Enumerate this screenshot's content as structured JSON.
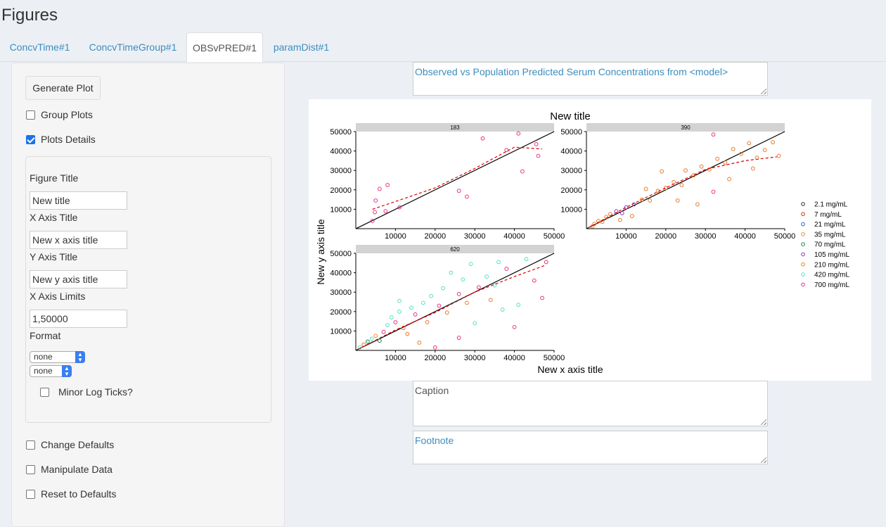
{
  "page": {
    "title": "Figures"
  },
  "tabs": [
    {
      "label": "ConcvTime#1",
      "active": false
    },
    {
      "label": "ConcvTimeGroup#1",
      "active": false
    },
    {
      "label": "OBSvPRED#1",
      "active": true
    },
    {
      "label": "paramDist#1",
      "active": false
    }
  ],
  "sidebar": {
    "generate_label": "Generate Plot",
    "group_plots": {
      "label": "Group Plots",
      "checked": false
    },
    "plot_details": {
      "label": "Plots Details",
      "checked": true
    },
    "figure_title": {
      "label": "Figure Title",
      "value": "New title"
    },
    "x_axis_title": {
      "label": "X Axis Title",
      "value": "New x axis title"
    },
    "y_axis_title": {
      "label": "Y Axis Title",
      "value": "New y axis title"
    },
    "x_axis_limits": {
      "label": "X Axis Limits",
      "value": "1,50000"
    },
    "format": {
      "label": "Format",
      "select1": "none",
      "select2": "none"
    },
    "minor_log_ticks": {
      "label": "Minor Log Ticks?",
      "checked": false
    },
    "change_defaults": {
      "label": "Change Defaults",
      "checked": false
    },
    "manipulate_data": {
      "label": "Manipulate Data",
      "checked": false
    },
    "reset_defaults": {
      "label": "Reset to Defaults",
      "checked": false
    }
  },
  "main": {
    "title_text": "Observed vs Population Predicted Serum Concentrations from <model>",
    "caption_placeholder": "Caption",
    "footnote_text": "Footnote"
  },
  "chart_data": {
    "type": "scatter",
    "title": "New title",
    "xlabel": "New x axis title",
    "ylabel": "New y axis title",
    "xlim": [
      1,
      50000
    ],
    "ylim": [
      1,
      50000
    ],
    "x_ticks": [
      10000,
      20000,
      30000,
      40000,
      50000
    ],
    "y_ticks": [
      10000,
      20000,
      30000,
      40000,
      50000
    ],
    "facets": [
      "183",
      "390",
      "620"
    ],
    "legend_position": "right",
    "series": [
      {
        "name": "2.1 mg/mL",
        "color": "#333333"
      },
      {
        "name": "7 mg/mL",
        "color": "#cc3311"
      },
      {
        "name": "21 mg/mL",
        "color": "#2266bb"
      },
      {
        "name": "35 mg/mL",
        "color": "#e88a33"
      },
      {
        "name": "70 mg/mL",
        "color": "#11884e"
      },
      {
        "name": "105 mg/mL",
        "color": "#9933cc"
      },
      {
        "name": "210 mg/mL",
        "color": "#ee7722"
      },
      {
        "name": "420 mg/mL",
        "color": "#55e0c0"
      },
      {
        "name": "700 mg/mL",
        "color": "#e8308a"
      }
    ],
    "panels": [
      {
        "facet": "183",
        "identity_line": true,
        "points": [
          {
            "x": 4200,
            "y": 4000,
            "s": 8
          },
          {
            "x": 4800,
            "y": 8500,
            "s": 8
          },
          {
            "x": 5000,
            "y": 14500,
            "s": 8
          },
          {
            "x": 6000,
            "y": 20500,
            "s": 8
          },
          {
            "x": 8000,
            "y": 22500,
            "s": 8
          },
          {
            "x": 7500,
            "y": 9000,
            "s": 8
          },
          {
            "x": 11000,
            "y": 11000,
            "s": 8
          },
          {
            "x": 26000,
            "y": 19500,
            "s": 8
          },
          {
            "x": 28000,
            "y": 16500,
            "s": 8
          },
          {
            "x": 32000,
            "y": 46500,
            "s": 8
          },
          {
            "x": 38000,
            "y": 40500,
            "s": 8
          },
          {
            "x": 41000,
            "y": 49000,
            "s": 8
          },
          {
            "x": 42000,
            "y": 29500,
            "s": 8
          },
          {
            "x": 45500,
            "y": 43500,
            "s": 8
          },
          {
            "x": 46000,
            "y": 37500,
            "s": 8
          }
        ],
        "smooth": [
          [
            4200,
            10000
          ],
          [
            10000,
            14000
          ],
          [
            20000,
            21000
          ],
          [
            30000,
            31000
          ],
          [
            40000,
            42000
          ],
          [
            47000,
            41000
          ]
        ]
      },
      {
        "facet": "390",
        "identity_line": true,
        "points": [
          {
            "x": 1500,
            "y": 1200,
            "s": 3
          },
          {
            "x": 2000,
            "y": 2500,
            "s": 3
          },
          {
            "x": 3000,
            "y": 4000,
            "s": 6
          },
          {
            "x": 4000,
            "y": 3500,
            "s": 6
          },
          {
            "x": 5000,
            "y": 6000,
            "s": 6
          },
          {
            "x": 6000,
            "y": 7500,
            "s": 6
          },
          {
            "x": 7500,
            "y": 9000,
            "s": 5
          },
          {
            "x": 9000,
            "y": 8000,
            "s": 5
          },
          {
            "x": 10000,
            "y": 11000,
            "s": 5
          },
          {
            "x": 12000,
            "y": 12500,
            "s": 5
          },
          {
            "x": 14000,
            "y": 15000,
            "s": 6
          },
          {
            "x": 16000,
            "y": 14500,
            "s": 6
          },
          {
            "x": 18000,
            "y": 19500,
            "s": 6
          },
          {
            "x": 20000,
            "y": 21000,
            "s": 6
          },
          {
            "x": 22000,
            "y": 24000,
            "s": 6
          },
          {
            "x": 24000,
            "y": 22500,
            "s": 6
          },
          {
            "x": 25000,
            "y": 30000,
            "s": 6
          },
          {
            "x": 27000,
            "y": 27500,
            "s": 6
          },
          {
            "x": 29000,
            "y": 32000,
            "s": 6
          },
          {
            "x": 31000,
            "y": 30500,
            "s": 6
          },
          {
            "x": 33000,
            "y": 36000,
            "s": 6
          },
          {
            "x": 35000,
            "y": 34000,
            "s": 6
          },
          {
            "x": 37000,
            "y": 41000,
            "s": 6
          },
          {
            "x": 39000,
            "y": 38500,
            "s": 6
          },
          {
            "x": 41000,
            "y": 44000,
            "s": 6
          },
          {
            "x": 43000,
            "y": 36500,
            "s": 6
          },
          {
            "x": 45000,
            "y": 40500,
            "s": 6
          },
          {
            "x": 47000,
            "y": 44500,
            "s": 6
          },
          {
            "x": 48500,
            "y": 37500,
            "s": 6
          },
          {
            "x": 19000,
            "y": 29500,
            "s": 6
          },
          {
            "x": 23000,
            "y": 14500,
            "s": 6
          },
          {
            "x": 32000,
            "y": 19000,
            "s": 8
          },
          {
            "x": 32000,
            "y": 48500,
            "s": 8
          },
          {
            "x": 28000,
            "y": 12500,
            "s": 6
          },
          {
            "x": 15000,
            "y": 20500,
            "s": 6
          },
          {
            "x": 36000,
            "y": 25500,
            "s": 6
          },
          {
            "x": 8500,
            "y": 4500,
            "s": 6
          },
          {
            "x": 11500,
            "y": 6500,
            "s": 6
          },
          {
            "x": 42000,
            "y": 31000,
            "s": 6
          }
        ],
        "smooth": [
          [
            500,
            500
          ],
          [
            10000,
            11000
          ],
          [
            20000,
            21000
          ],
          [
            30000,
            30500
          ],
          [
            40000,
            35000
          ],
          [
            48000,
            37000
          ]
        ]
      },
      {
        "facet": "620",
        "identity_line": true,
        "points": [
          {
            "x": 1000,
            "y": 1500,
            "s": 7
          },
          {
            "x": 2000,
            "y": 3000,
            "s": 6
          },
          {
            "x": 3000,
            "y": 4500,
            "s": 4
          },
          {
            "x": 4000,
            "y": 6000,
            "s": 7
          },
          {
            "x": 5000,
            "y": 7500,
            "s": 3
          },
          {
            "x": 6000,
            "y": 5000,
            "s": 4
          },
          {
            "x": 7000,
            "y": 9500,
            "s": 8
          },
          {
            "x": 8000,
            "y": 13000,
            "s": 7
          },
          {
            "x": 9000,
            "y": 17000,
            "s": 7
          },
          {
            "x": 10000,
            "y": 14500,
            "s": 8
          },
          {
            "x": 11000,
            "y": 20000,
            "s": 7
          },
          {
            "x": 12000,
            "y": 11500,
            "s": 6
          },
          {
            "x": 14000,
            "y": 22000,
            "s": 7
          },
          {
            "x": 15000,
            "y": 18500,
            "s": 8
          },
          {
            "x": 17000,
            "y": 24500,
            "s": 7
          },
          {
            "x": 18000,
            "y": 14500,
            "s": 6
          },
          {
            "x": 19000,
            "y": 28000,
            "s": 7
          },
          {
            "x": 21000,
            "y": 23000,
            "s": 8
          },
          {
            "x": 22000,
            "y": 32000,
            "s": 7
          },
          {
            "x": 23000,
            "y": 19500,
            "s": 6
          },
          {
            "x": 24000,
            "y": 40000,
            "s": 7
          },
          {
            "x": 26000,
            "y": 29000,
            "s": 8
          },
          {
            "x": 27000,
            "y": 36500,
            "s": 7
          },
          {
            "x": 28000,
            "y": 24500,
            "s": 6
          },
          {
            "x": 29000,
            "y": 44500,
            "s": 7
          },
          {
            "x": 31000,
            "y": 32500,
            "s": 8
          },
          {
            "x": 33000,
            "y": 38000,
            "s": 7
          },
          {
            "x": 34000,
            "y": 26000,
            "s": 6
          },
          {
            "x": 36000,
            "y": 45500,
            "s": 7
          },
          {
            "x": 37000,
            "y": 21000,
            "s": 7
          },
          {
            "x": 38000,
            "y": 42000,
            "s": 8
          },
          {
            "x": 40000,
            "y": 12000,
            "s": 8
          },
          {
            "x": 41000,
            "y": 23500,
            "s": 7
          },
          {
            "x": 43000,
            "y": 47000,
            "s": 7
          },
          {
            "x": 45000,
            "y": 36000,
            "s": 8
          },
          {
            "x": 47000,
            "y": 27000,
            "s": 8
          },
          {
            "x": 48000,
            "y": 45500,
            "s": 8
          },
          {
            "x": 26000,
            "y": 6500,
            "s": 8
          },
          {
            "x": 16000,
            "y": 4000,
            "s": 6
          },
          {
            "x": 20000,
            "y": 1500,
            "s": 8
          },
          {
            "x": 30000,
            "y": 14000,
            "s": 7
          },
          {
            "x": 13000,
            "y": 8500,
            "s": 6
          },
          {
            "x": 35000,
            "y": 33500,
            "s": 7
          },
          {
            "x": 11000,
            "y": 25500,
            "s": 7
          }
        ],
        "smooth": [
          [
            500,
            500
          ],
          [
            10000,
            10500
          ],
          [
            20000,
            19500
          ],
          [
            30000,
            30000
          ],
          [
            40000,
            38000
          ],
          [
            48000,
            44000
          ]
        ]
      }
    ]
  }
}
